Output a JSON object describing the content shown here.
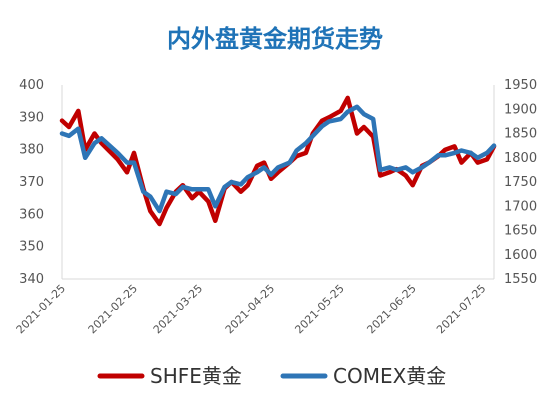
{
  "chart_data": {
    "type": "line",
    "title": "内外盘黄金期货走势",
    "x_ticks": [
      "2021-01-25",
      "2021-02-25",
      "2021-03-25",
      "2021-04-25",
      "2021-05-25",
      "2021-06-25",
      "2021-07-25"
    ],
    "left_axis": {
      "ylim": [
        340,
        400
      ],
      "ticks": [
        "340",
        "350",
        "360",
        "370",
        "380",
        "390",
        "400"
      ]
    },
    "right_axis": {
      "ylim": [
        1550,
        1950
      ],
      "ticks": [
        "1550",
        "1600",
        "1650",
        "1700",
        "1750",
        "1800",
        "1850",
        "1900",
        "1950"
      ]
    },
    "grid": false,
    "legend_position": "bottom",
    "x": [
      "2021-01-25",
      "2021-01-28",
      "2021-02-01",
      "2021-02-04",
      "2021-02-08",
      "2021-02-11",
      "2021-02-18",
      "2021-02-22",
      "2021-02-25",
      "2021-03-01",
      "2021-03-04",
      "2021-03-08",
      "2021-03-11",
      "2021-03-15",
      "2021-03-18",
      "2021-03-22",
      "2021-03-25",
      "2021-03-29",
      "2021-04-01",
      "2021-04-05",
      "2021-04-08",
      "2021-04-12",
      "2021-04-15",
      "2021-04-19",
      "2021-04-22",
      "2021-04-25",
      "2021-04-28",
      "2021-05-03",
      "2021-05-06",
      "2021-05-10",
      "2021-05-13",
      "2021-05-17",
      "2021-05-20",
      "2021-05-25",
      "2021-05-28",
      "2021-06-01",
      "2021-06-04",
      "2021-06-08",
      "2021-06-11",
      "2021-06-15",
      "2021-06-18",
      "2021-06-22",
      "2021-06-25",
      "2021-06-29",
      "2021-07-02",
      "2021-07-06",
      "2021-07-09",
      "2021-07-13",
      "2021-07-16",
      "2021-07-20",
      "2021-07-23",
      "2021-07-27",
      "2021-07-30"
    ],
    "series": [
      {
        "name": "SHFE黄金",
        "color": "#c00000",
        "axis": "left",
        "values": [
          389,
          387,
          392,
          380,
          385,
          382,
          377,
          373,
          379,
          368,
          361,
          357,
          362,
          367,
          369,
          365,
          367,
          364,
          358,
          368,
          370,
          367,
          369,
          375,
          376,
          371,
          373,
          376,
          378,
          379,
          385,
          389,
          390,
          392,
          396,
          385,
          387,
          384,
          372,
          373,
          374,
          372,
          369,
          375,
          376,
          378,
          380,
          381,
          376,
          379,
          376,
          377,
          381
        ]
      },
      {
        "name": "COMEX黄金",
        "color": "#2e75b6",
        "axis": "right",
        "values": [
          1850,
          1845,
          1860,
          1800,
          1830,
          1840,
          1810,
          1790,
          1790,
          1730,
          1720,
          1690,
          1730,
          1725,
          1740,
          1735,
          1735,
          1735,
          1700,
          1740,
          1750,
          1745,
          1760,
          1770,
          1780,
          1765,
          1780,
          1790,
          1815,
          1830,
          1845,
          1865,
          1875,
          1880,
          1895,
          1905,
          1890,
          1880,
          1775,
          1780,
          1775,
          1780,
          1770,
          1780,
          1790,
          1805,
          1805,
          1810,
          1815,
          1810,
          1800,
          1810,
          1825
        ]
      }
    ]
  }
}
